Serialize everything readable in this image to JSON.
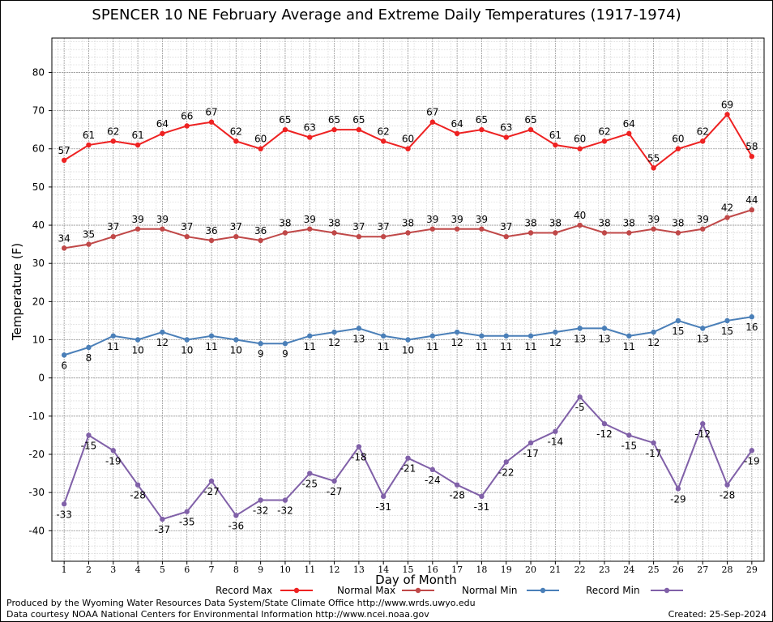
{
  "page": {
    "title": "SPENCER 10 NE February Average and Extreme Daily Temperatures (1917-1974)",
    "credit_line_1": "Produced by the Wyoming Water Resources Data System/State Climate Office http://www.wrds.uwyo.edu",
    "credit_line_2": "Data courtesy NOAA National Centers for Environmental Information http://www.ncei.noaa.gov",
    "created": "Created:  25-Sep-2024"
  },
  "chart_data": {
    "type": "line",
    "title": "SPENCER 10 NE February Average and Extreme Daily Temperatures (1917-1974)",
    "xlabel": "Day of Month",
    "ylabel": "Temperature (F)",
    "ylim": [
      -48,
      89
    ],
    "xlim": [
      0.5,
      29.5
    ],
    "yticks": [
      -40,
      -30,
      -20,
      -10,
      0,
      10,
      20,
      30,
      40,
      50,
      60,
      70,
      80
    ],
    "x": [
      1,
      2,
      3,
      4,
      5,
      6,
      7,
      8,
      9,
      10,
      11,
      12,
      13,
      14,
      15,
      16,
      17,
      18,
      19,
      20,
      21,
      22,
      23,
      24,
      25,
      26,
      27,
      28,
      29
    ],
    "grid": true,
    "legend_position": "bottom",
    "series": [
      {
        "name": "Record Max",
        "color": "#ee2222",
        "label_pos": "above",
        "values": [
          57,
          61,
          62,
          61,
          64,
          66,
          67,
          62,
          60,
          65,
          63,
          65,
          65,
          62,
          60,
          67,
          64,
          65,
          63,
          65,
          61,
          60,
          62,
          64,
          55,
          60,
          62,
          69,
          58
        ]
      },
      {
        "name": "Normal Max",
        "color": "#c04848",
        "label_pos": "above",
        "values": [
          34,
          35,
          37,
          39,
          39,
          37,
          36,
          37,
          36,
          38,
          39,
          38,
          37,
          37,
          38,
          39,
          39,
          39,
          37,
          38,
          38,
          40,
          38,
          38,
          39,
          38,
          39,
          42,
          44
        ]
      },
      {
        "name": "Normal Min",
        "color": "#4a7fb8",
        "label_pos": "below",
        "values": [
          6,
          8,
          11,
          10,
          12,
          10,
          11,
          10,
          9,
          9,
          11,
          12,
          13,
          11,
          10,
          11,
          12,
          11,
          11,
          11,
          12,
          13,
          13,
          11,
          12,
          15,
          13,
          15,
          16
        ]
      },
      {
        "name": "Record Min",
        "color": "#8060a8",
        "label_pos": "below",
        "values": [
          -33,
          -15,
          -19,
          -28,
          -37,
          -35,
          -27,
          -36,
          -32,
          -32,
          -25,
          -27,
          -18,
          -31,
          -21,
          -24,
          -28,
          -31,
          -22,
          -17,
          -14,
          -5,
          -12,
          -15,
          -17,
          -29,
          -12,
          -28,
          -19
        ]
      }
    ]
  }
}
